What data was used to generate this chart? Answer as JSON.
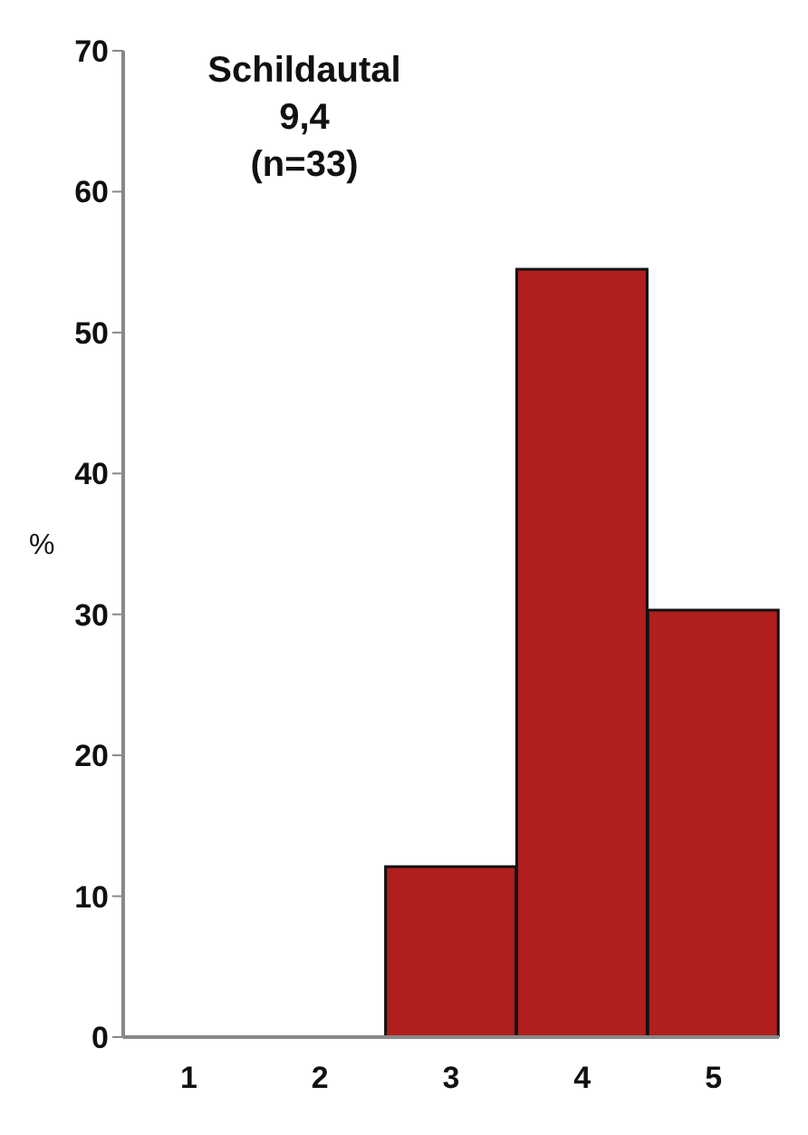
{
  "chart_data": {
    "type": "bar",
    "title": "Schildautal\n9,4\n(n=33)",
    "ylabel": "%",
    "categories": [
      "1",
      "2",
      "3",
      "4",
      "5"
    ],
    "values": [
      0,
      0,
      12.1,
      54.5,
      30.3
    ],
    "color": "#b01e1e",
    "ylim": [
      0,
      70
    ],
    "yticks": [
      0,
      10,
      20,
      30,
      40,
      50,
      60,
      70
    ],
    "grid": false
  }
}
